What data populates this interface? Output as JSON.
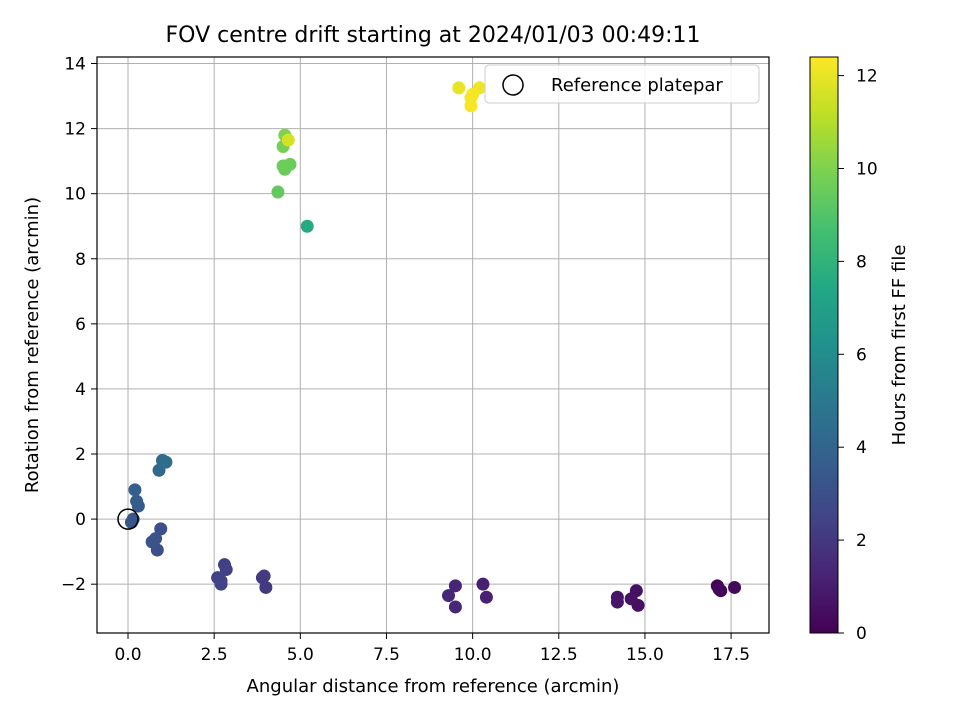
{
  "chart_data": {
    "type": "scatter",
    "title": "FOV centre drift starting at 2024/01/03 00:49:11",
    "xlabel": "Angular distance from reference (arcmin)",
    "ylabel": "Rotation from reference (arcmin)",
    "xlim": [
      -0.9,
      18.6
    ],
    "ylim": [
      -3.5,
      14.2
    ],
    "xticks": [
      "0.0",
      "2.5",
      "5.0",
      "7.5",
      "10.0",
      "12.5",
      "15.0",
      "17.5"
    ],
    "xtick_values": [
      0,
      2.5,
      5,
      7.5,
      10,
      12.5,
      15,
      17.5
    ],
    "yticks": [
      "−2",
      "0",
      "2",
      "4",
      "6",
      "8",
      "10",
      "12",
      "14"
    ],
    "ytick_values": [
      -2,
      0,
      2,
      4,
      6,
      8,
      10,
      12,
      14
    ],
    "grid": true,
    "colormap": "viridis",
    "colorbar": {
      "label": "Hours from first FF file",
      "range": [
        0,
        12.4
      ],
      "ticks": [
        "0",
        "2",
        "4",
        "6",
        "8",
        "10",
        "12"
      ],
      "tick_values": [
        0,
        2,
        4,
        6,
        8,
        10,
        12
      ]
    },
    "reference": {
      "name": "Reference platepar",
      "x": 0,
      "y": 0
    },
    "legend": {
      "position": "top-right",
      "entries": [
        "Reference platepar"
      ]
    },
    "points": [
      {
        "x": 17.1,
        "y": -2.05,
        "h": 0.1
      },
      {
        "x": 17.2,
        "y": -2.2,
        "h": 0.15
      },
      {
        "x": 17.15,
        "y": -2.15,
        "h": 0.2
      },
      {
        "x": 17.6,
        "y": -2.1,
        "h": 0.3
      },
      {
        "x": 14.8,
        "y": -2.65,
        "h": 0.5
      },
      {
        "x": 14.75,
        "y": -2.2,
        "h": 0.55
      },
      {
        "x": 14.6,
        "y": -2.45,
        "h": 0.6
      },
      {
        "x": 14.2,
        "y": -2.4,
        "h": 0.7
      },
      {
        "x": 14.2,
        "y": -2.55,
        "h": 0.75
      },
      {
        "x": 10.3,
        "y": -2.0,
        "h": 1.1
      },
      {
        "x": 10.4,
        "y": -2.4,
        "h": 1.15
      },
      {
        "x": 9.5,
        "y": -2.05,
        "h": 1.3
      },
      {
        "x": 9.5,
        "y": -2.7,
        "h": 1.35
      },
      {
        "x": 9.3,
        "y": -2.35,
        "h": 1.4
      },
      {
        "x": 3.9,
        "y": -1.8,
        "h": 2.0
      },
      {
        "x": 4.0,
        "y": -2.1,
        "h": 2.05
      },
      {
        "x": 3.95,
        "y": -1.75,
        "h": 2.1
      },
      {
        "x": 2.8,
        "y": -1.4,
        "h": 2.3
      },
      {
        "x": 2.85,
        "y": -1.55,
        "h": 2.35
      },
      {
        "x": 2.6,
        "y": -1.8,
        "h": 2.4
      },
      {
        "x": 2.7,
        "y": -1.9,
        "h": 2.45
      },
      {
        "x": 2.7,
        "y": -2.0,
        "h": 2.5
      },
      {
        "x": 0.95,
        "y": -0.3,
        "h": 3.0
      },
      {
        "x": 0.85,
        "y": -0.95,
        "h": 3.05
      },
      {
        "x": 0.7,
        "y": -0.7,
        "h": 3.1
      },
      {
        "x": 0.8,
        "y": -0.6,
        "h": 3.15
      },
      {
        "x": 0.1,
        "y": -0.1,
        "h": 3.3
      },
      {
        "x": 0.15,
        "y": 0.0,
        "h": 3.35
      },
      {
        "x": 0.3,
        "y": 0.4,
        "h": 3.5
      },
      {
        "x": 0.25,
        "y": 0.55,
        "h": 3.6
      },
      {
        "x": 0.2,
        "y": 0.9,
        "h": 3.7
      },
      {
        "x": 0.9,
        "y": 1.5,
        "h": 4.2
      },
      {
        "x": 1.0,
        "y": 1.8,
        "h": 4.3
      },
      {
        "x": 1.1,
        "y": 1.75,
        "h": 4.4
      },
      {
        "x": 5.2,
        "y": 9.0,
        "h": 7.5
      },
      {
        "x": 4.35,
        "y": 10.05,
        "h": 9.4
      },
      {
        "x": 4.55,
        "y": 10.75,
        "h": 9.5
      },
      {
        "x": 4.7,
        "y": 10.9,
        "h": 9.55
      },
      {
        "x": 4.5,
        "y": 10.85,
        "h": 9.6
      },
      {
        "x": 4.5,
        "y": 11.45,
        "h": 9.8
      },
      {
        "x": 4.55,
        "y": 11.8,
        "h": 10.0
      },
      {
        "x": 4.65,
        "y": 11.65,
        "h": 11.6
      },
      {
        "x": 9.6,
        "y": 13.25,
        "h": 12.0
      },
      {
        "x": 10.2,
        "y": 13.25,
        "h": 12.1
      },
      {
        "x": 9.95,
        "y": 12.95,
        "h": 12.2
      },
      {
        "x": 10.0,
        "y": 13.05,
        "h": 12.25
      },
      {
        "x": 9.95,
        "y": 12.7,
        "h": 12.3
      }
    ]
  }
}
